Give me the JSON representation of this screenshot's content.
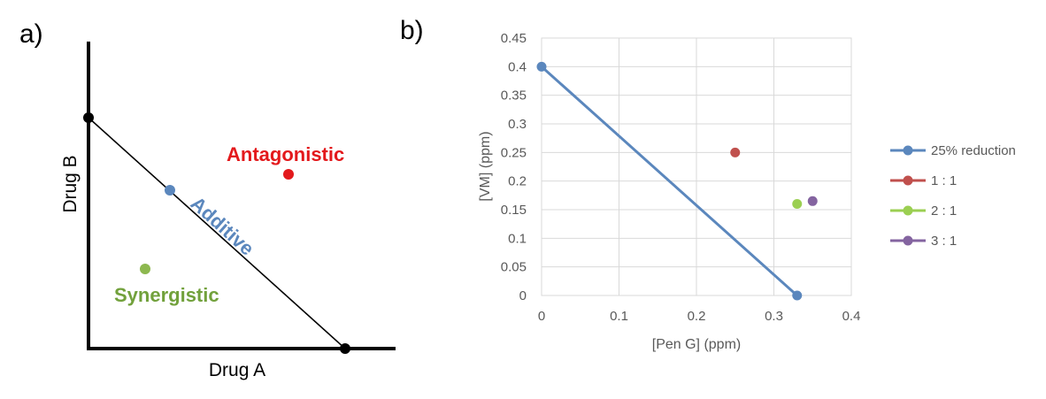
{
  "panels": {
    "a": {
      "label": "a)",
      "xlabel": "Drug A",
      "ylabel": "Drug B",
      "regions": {
        "antagonistic": "Antagonistic",
        "additive": "Additive",
        "synergistic": "Synergistic"
      }
    },
    "b": {
      "label": "b)"
    }
  },
  "colors": {
    "blue": "#5b87bd",
    "red": "#e3191c",
    "green": "#8db84f",
    "greenText": "#72a13c",
    "purple": "#8464a0",
    "redMarker": "#c0504d",
    "lime": "#9bcf52"
  },
  "chart_data": [
    {
      "type": "scatter",
      "title": "",
      "xlabel": "Drug A",
      "ylabel": "Drug B",
      "series": [
        {
          "name": "",
          "points": [
            [
              0,
              1
            ],
            [
              1,
              0
            ]
          ]
        }
      ],
      "annotations": [
        "Antagonistic",
        "Additive",
        "Synergistic"
      ]
    },
    {
      "type": "scatter",
      "title": "",
      "xlabel": "[Pen G] (ppm)",
      "ylabel": "[VM] (ppm)",
      "xlim": [
        0,
        0.4
      ],
      "ylim": [
        0,
        0.45
      ],
      "x_ticks": [
        "0",
        "0.1",
        "0.2",
        "0.3",
        "0.4"
      ],
      "y_ticks": [
        "0",
        "0.05",
        "0.1",
        "0.15",
        "0.2",
        "0.25",
        "0.3",
        "0.35",
        "0.4",
        "0.45"
      ],
      "grid": true,
      "legend_position": "right",
      "series": [
        {
          "name": "25% reduction",
          "color": "#5b87bd",
          "line": true,
          "points": [
            [
              0,
              0.4
            ],
            [
              0.33,
              0
            ]
          ]
        },
        {
          "name": "1 : 1",
          "color": "#c0504d",
          "line": false,
          "points": [
            [
              0.25,
              0.25
            ]
          ]
        },
        {
          "name": "2 : 1",
          "color": "#9bcf52",
          "line": false,
          "points": [
            [
              0.33,
              0.16
            ]
          ]
        },
        {
          "name": "3 : 1",
          "color": "#8464a0",
          "line": false,
          "points": [
            [
              0.35,
              0.165
            ]
          ]
        }
      ]
    }
  ]
}
